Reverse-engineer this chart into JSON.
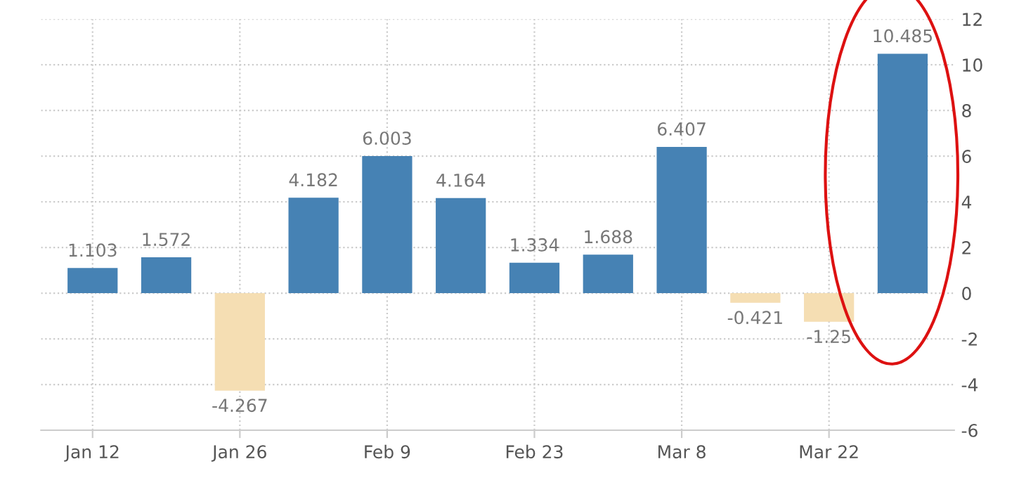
{
  "chart_data": {
    "type": "bar",
    "categories": [
      "Jan 12",
      null,
      "Jan 26",
      null,
      "Feb 9",
      null,
      "Feb 23",
      null,
      "Mar 8",
      null,
      "Mar 22",
      null
    ],
    "values": [
      1.103,
      1.572,
      -4.267,
      4.182,
      6.003,
      4.164,
      1.334,
      1.688,
      6.407,
      -0.421,
      -1.25,
      10.485
    ],
    "colors": [
      "#4682b4",
      "#4682b4",
      "#f5deb3",
      "#4682b4",
      "#4682b4",
      "#4682b4",
      "#4682b4",
      "#4682b4",
      "#4682b4",
      "#f5deb3",
      "#f5deb3",
      "#4682b4"
    ],
    "data_labels": true,
    "ylim": [
      -6,
      12
    ],
    "yticks": [
      -6,
      -4,
      -2,
      0,
      2,
      4,
      6,
      8,
      10,
      12
    ],
    "grid": true,
    "legend": false
  }
}
